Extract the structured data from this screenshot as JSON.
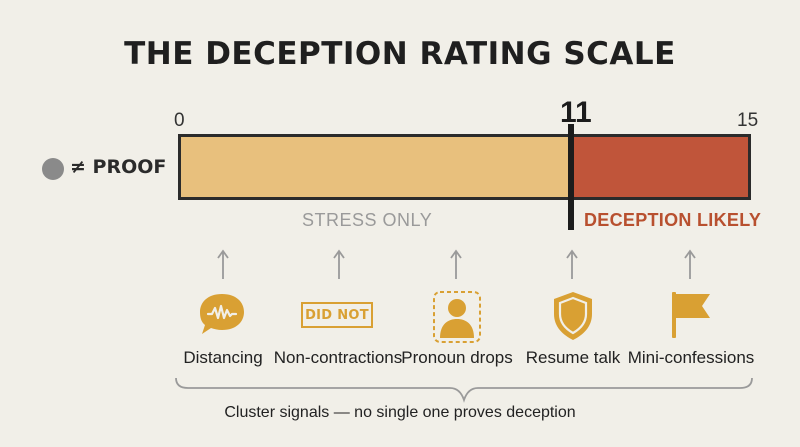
{
  "title": "THE DECEPTION RATING SCALE",
  "scale": {
    "min_label": "0",
    "max_label": "15",
    "threshold_label": "11",
    "min": 0,
    "max": 15,
    "threshold": 11
  },
  "legend": {
    "text": "≠ PROOF"
  },
  "zones": {
    "low": {
      "label": "STRESS ONLY",
      "color": "#e8c07d"
    },
    "high": {
      "label": "DECEPTION LIKELY",
      "color": "#c0553a"
    }
  },
  "signals": [
    {
      "label": "Distancing",
      "icon": "speech-bubble-wave-icon"
    },
    {
      "label": "Non-contractions",
      "icon": "did-not-tag-icon",
      "icon_text": "DID NOT"
    },
    {
      "label": "Pronoun drops",
      "icon": "person-outline-icon"
    },
    {
      "label": "Resume talk",
      "icon": "shield-icon"
    },
    {
      "label": "Mini-confessions",
      "icon": "flag-icon"
    }
  ],
  "footer": "Cluster signals — no single one proves deception",
  "colors": {
    "accent": "#d9a033",
    "ink": "#2b2b2b",
    "muted": "#9a9a9a"
  }
}
